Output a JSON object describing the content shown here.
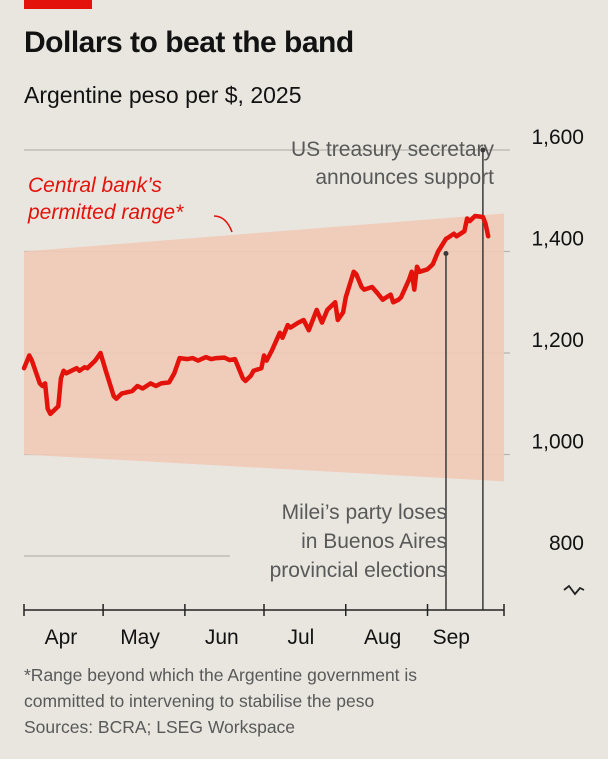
{
  "header": {
    "title": "Dollars to beat the band",
    "subtitle": "Argentine peso per $, 2025"
  },
  "chart_data": {
    "type": "line",
    "ylim": [
      740,
      1600
    ],
    "y_ticks": [
      "1,600",
      "1,400",
      "1,200",
      "1,000",
      "800"
    ],
    "y_tick_values": [
      1600,
      1400,
      1200,
      1000,
      800
    ],
    "axis_break": true,
    "x_labels": [
      "Apr",
      "May",
      "Jun",
      "Jul",
      "Aug",
      "Sep"
    ],
    "x_label_dates": [
      "2025-04-15",
      "2025-05-15",
      "2025-06-15",
      "2025-07-15",
      "2025-08-15",
      "2025-09-10"
    ],
    "x_month_starts": [
      "2025-04-01",
      "2025-05-01",
      "2025-06-01",
      "2025-07-01",
      "2025-08-01",
      "2025-09-01",
      "2025-09-30"
    ],
    "xlim": [
      "2025-04-01",
      "2025-09-30"
    ],
    "series": [
      {
        "name": "Argentine peso per $",
        "color": "#E3120B",
        "points": [
          [
            "2025-04-01",
            1170
          ],
          [
            "2025-04-03",
            1195
          ],
          [
            "2025-04-04",
            1185
          ],
          [
            "2025-04-07",
            1140
          ],
          [
            "2025-04-08",
            1135
          ],
          [
            "2025-04-09",
            1140
          ],
          [
            "2025-04-10",
            1090
          ],
          [
            "2025-04-11",
            1080
          ],
          [
            "2025-04-14",
            1095
          ],
          [
            "2025-04-15",
            1150
          ],
          [
            "2025-04-16",
            1165
          ],
          [
            "2025-04-17",
            1160
          ],
          [
            "2025-04-21",
            1170
          ],
          [
            "2025-04-22",
            1165
          ],
          [
            "2025-04-24",
            1172
          ],
          [
            "2025-04-25",
            1170
          ],
          [
            "2025-04-28",
            1185
          ],
          [
            "2025-04-30",
            1200
          ],
          [
            "2025-05-02",
            1165
          ],
          [
            "2025-05-05",
            1115
          ],
          [
            "2025-05-06",
            1110
          ],
          [
            "2025-05-08",
            1120
          ],
          [
            "2025-05-12",
            1125
          ],
          [
            "2025-05-14",
            1135
          ],
          [
            "2025-05-16",
            1130
          ],
          [
            "2025-05-19",
            1140
          ],
          [
            "2025-05-21",
            1135
          ],
          [
            "2025-05-23",
            1140
          ],
          [
            "2025-05-26",
            1142
          ],
          [
            "2025-05-28",
            1160
          ],
          [
            "2025-05-30",
            1190
          ],
          [
            "2025-06-02",
            1188
          ],
          [
            "2025-06-04",
            1190
          ],
          [
            "2025-06-06",
            1185
          ],
          [
            "2025-06-09",
            1192
          ],
          [
            "2025-06-11",
            1188
          ],
          [
            "2025-06-13",
            1190
          ],
          [
            "2025-06-16",
            1191
          ],
          [
            "2025-06-18",
            1186
          ],
          [
            "2025-06-20",
            1188
          ],
          [
            "2025-06-23",
            1150
          ],
          [
            "2025-06-24",
            1145
          ],
          [
            "2025-06-26",
            1155
          ],
          [
            "2025-06-27",
            1165
          ],
          [
            "2025-06-30",
            1170
          ],
          [
            "2025-07-01",
            1195
          ],
          [
            "2025-07-02",
            1185
          ],
          [
            "2025-07-04",
            1205
          ],
          [
            "2025-07-07",
            1240
          ],
          [
            "2025-07-08",
            1230
          ],
          [
            "2025-07-10",
            1255
          ],
          [
            "2025-07-11",
            1250
          ],
          [
            "2025-07-14",
            1260
          ],
          [
            "2025-07-16",
            1265
          ],
          [
            "2025-07-18",
            1245
          ],
          [
            "2025-07-21",
            1285
          ],
          [
            "2025-07-23",
            1260
          ],
          [
            "2025-07-25",
            1285
          ],
          [
            "2025-07-28",
            1300
          ],
          [
            "2025-07-29",
            1265
          ],
          [
            "2025-07-31",
            1280
          ],
          [
            "2025-08-01",
            1310
          ],
          [
            "2025-08-04",
            1360
          ],
          [
            "2025-08-05",
            1355
          ],
          [
            "2025-08-07",
            1330
          ],
          [
            "2025-08-08",
            1325
          ],
          [
            "2025-08-11",
            1330
          ],
          [
            "2025-08-13",
            1318
          ],
          [
            "2025-08-15",
            1305
          ],
          [
            "2025-08-18",
            1315
          ],
          [
            "2025-08-19",
            1300
          ],
          [
            "2025-08-21",
            1305
          ],
          [
            "2025-08-22",
            1310
          ],
          [
            "2025-08-25",
            1345
          ],
          [
            "2025-08-26",
            1360
          ],
          [
            "2025-08-27",
            1325
          ],
          [
            "2025-08-28",
            1370
          ],
          [
            "2025-08-29",
            1360
          ],
          [
            "2025-09-01",
            1365
          ],
          [
            "2025-09-02",
            1370
          ],
          [
            "2025-09-03",
            1375
          ],
          [
            "2025-09-05",
            1400
          ],
          [
            "2025-09-08",
            1425
          ],
          [
            "2025-09-09",
            1428
          ],
          [
            "2025-09-11",
            1435
          ],
          [
            "2025-09-12",
            1430
          ],
          [
            "2025-09-15",
            1440
          ],
          [
            "2025-09-16",
            1465
          ],
          [
            "2025-09-17",
            1460
          ],
          [
            "2025-09-19",
            1470
          ],
          [
            "2025-09-22",
            1468
          ],
          [
            "2025-09-23",
            1455
          ],
          [
            "2025-09-24",
            1430
          ]
        ]
      }
    ],
    "band": {
      "label": "Central bank’s permitted range*",
      "label_lines": [
        "Central bank’s",
        "permitted range*"
      ],
      "color": "#F1C9B7",
      "start_date": "2025-04-01",
      "end_date": "2025-09-30",
      "upper": [
        1400,
        1475
      ],
      "lower": [
        1000,
        947
      ]
    },
    "annotations": [
      {
        "lines": [
          "US treasury secretary",
          "announces support"
        ],
        "date": "2025-09-22",
        "value": 1600
      },
      {
        "lines": [
          "Milei’s party loses",
          "in Buenos Aires",
          "provincial elections"
        ],
        "date": "2025-09-08",
        "value": 1400
      }
    ],
    "grid": true
  },
  "footer": {
    "note_line1": "*Range beyond which the Argentine government is",
    "note_line2": "committed to intervening to stabilise the peso",
    "sources": "Sources: BCRA; LSEG Workspace"
  }
}
